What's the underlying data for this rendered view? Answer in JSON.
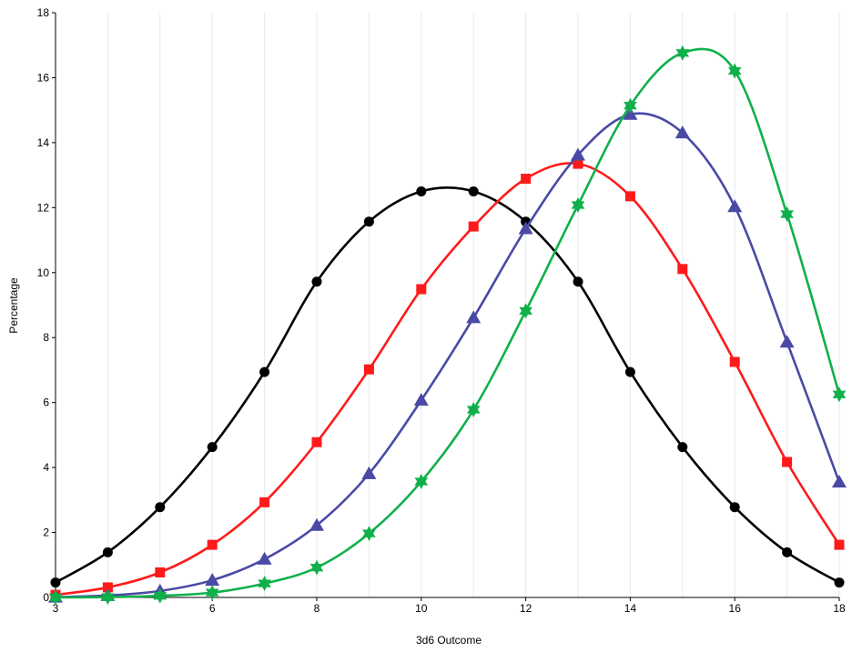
{
  "chart_data": {
    "type": "line",
    "title": "",
    "xlabel": "3d6 Outcome",
    "ylabel": "Percentage",
    "xlim": [
      3,
      18
    ],
    "ylim": [
      0,
      18
    ],
    "x_ticks": [
      3,
      6,
      8,
      10,
      12,
      14,
      16,
      18
    ],
    "y_ticks": [
      0,
      2,
      4,
      6,
      8,
      10,
      12,
      14,
      16,
      18
    ],
    "grid": "vertical",
    "legend": "none",
    "x": [
      3,
      4,
      5,
      6,
      7,
      8,
      9,
      10,
      11,
      12,
      13,
      14,
      15,
      16,
      17,
      18
    ],
    "series": [
      {
        "color": "#000000",
        "marker": "circle",
        "values": [
          0.46,
          1.39,
          2.78,
          4.63,
          6.94,
          9.72,
          11.57,
          12.5,
          12.5,
          11.57,
          9.72,
          6.94,
          4.63,
          2.78,
          1.39,
          0.46
        ]
      },
      {
        "color": "#ff1a1a",
        "marker": "square",
        "values": [
          0.08,
          0.31,
          0.77,
          1.62,
          2.93,
          4.78,
          7.02,
          9.49,
          11.42,
          12.89,
          13.35,
          12.35,
          10.11,
          7.25,
          4.17,
          1.62
        ]
      },
      {
        "color": "#4a4aa5",
        "marker": "triangle",
        "values": [
          0.01,
          0.06,
          0.2,
          0.53,
          1.18,
          2.22,
          3.81,
          6.07,
          8.61,
          11.35,
          13.62,
          14.87,
          14.3,
          12.03,
          7.86,
          3.55
        ]
      },
      {
        "color": "#0fb04a",
        "marker": "star",
        "values": [
          0.0,
          0.01,
          0.05,
          0.15,
          0.43,
          0.92,
          1.97,
          3.57,
          5.78,
          8.82,
          12.08,
          15.14,
          16.76,
          16.21,
          11.8,
          6.25
        ]
      }
    ]
  }
}
